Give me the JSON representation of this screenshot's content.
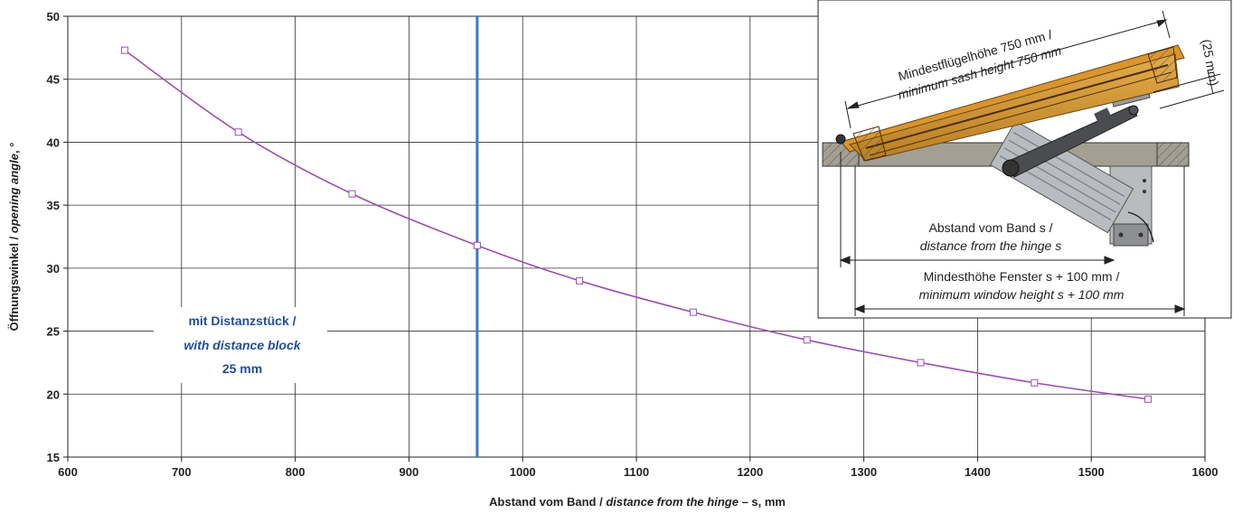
{
  "chart_data": {
    "type": "line",
    "xlabel_parts": [
      "Abstand vom Band / ",
      "distance from the hinge",
      " – s, mm"
    ],
    "ylabel_parts": [
      "Öffnungswinkel / ",
      "opening angle",
      ", °"
    ],
    "xlim": [
      600,
      1600
    ],
    "ylim": [
      15,
      50
    ],
    "xticks": [
      "600",
      "700",
      "800",
      "900",
      "1000",
      "1100",
      "1200",
      "1300",
      "1400",
      "1500",
      "1600"
    ],
    "yticks": [
      "15",
      "20",
      "25",
      "30",
      "35",
      "40",
      "45",
      "50"
    ],
    "grid": true,
    "series": [
      {
        "color": "#9b4fb0",
        "x": [
          650,
          750,
          850,
          960,
          1050,
          1150,
          1250,
          1350,
          1450,
          1550
        ],
        "y": [
          47.3,
          40.8,
          35.9,
          31.8,
          29.0,
          26.5,
          24.3,
          22.5,
          20.9,
          19.6
        ]
      }
    ],
    "reference_line": {
      "x": 960,
      "color": "#3a78c2"
    },
    "annotation": {
      "line1": "mit Distanzstück /",
      "line2": "with distance block",
      "line3": "25 mm",
      "color": "#1f4e9a"
    }
  },
  "inset": {
    "sash_label_1": "Mindestflügelhöhe 750 mm /",
    "sash_label_2": "minimum sash height 750 mm",
    "offset_label": "(25 mm)",
    "distance_label_1": "Abstand vom Band s /",
    "distance_label_2": "distance from the hinge s",
    "window_label_1": "Mindesthöhe Fenster s + 100 mm /",
    "window_label_2": "minimum window height s + 100 mm"
  }
}
